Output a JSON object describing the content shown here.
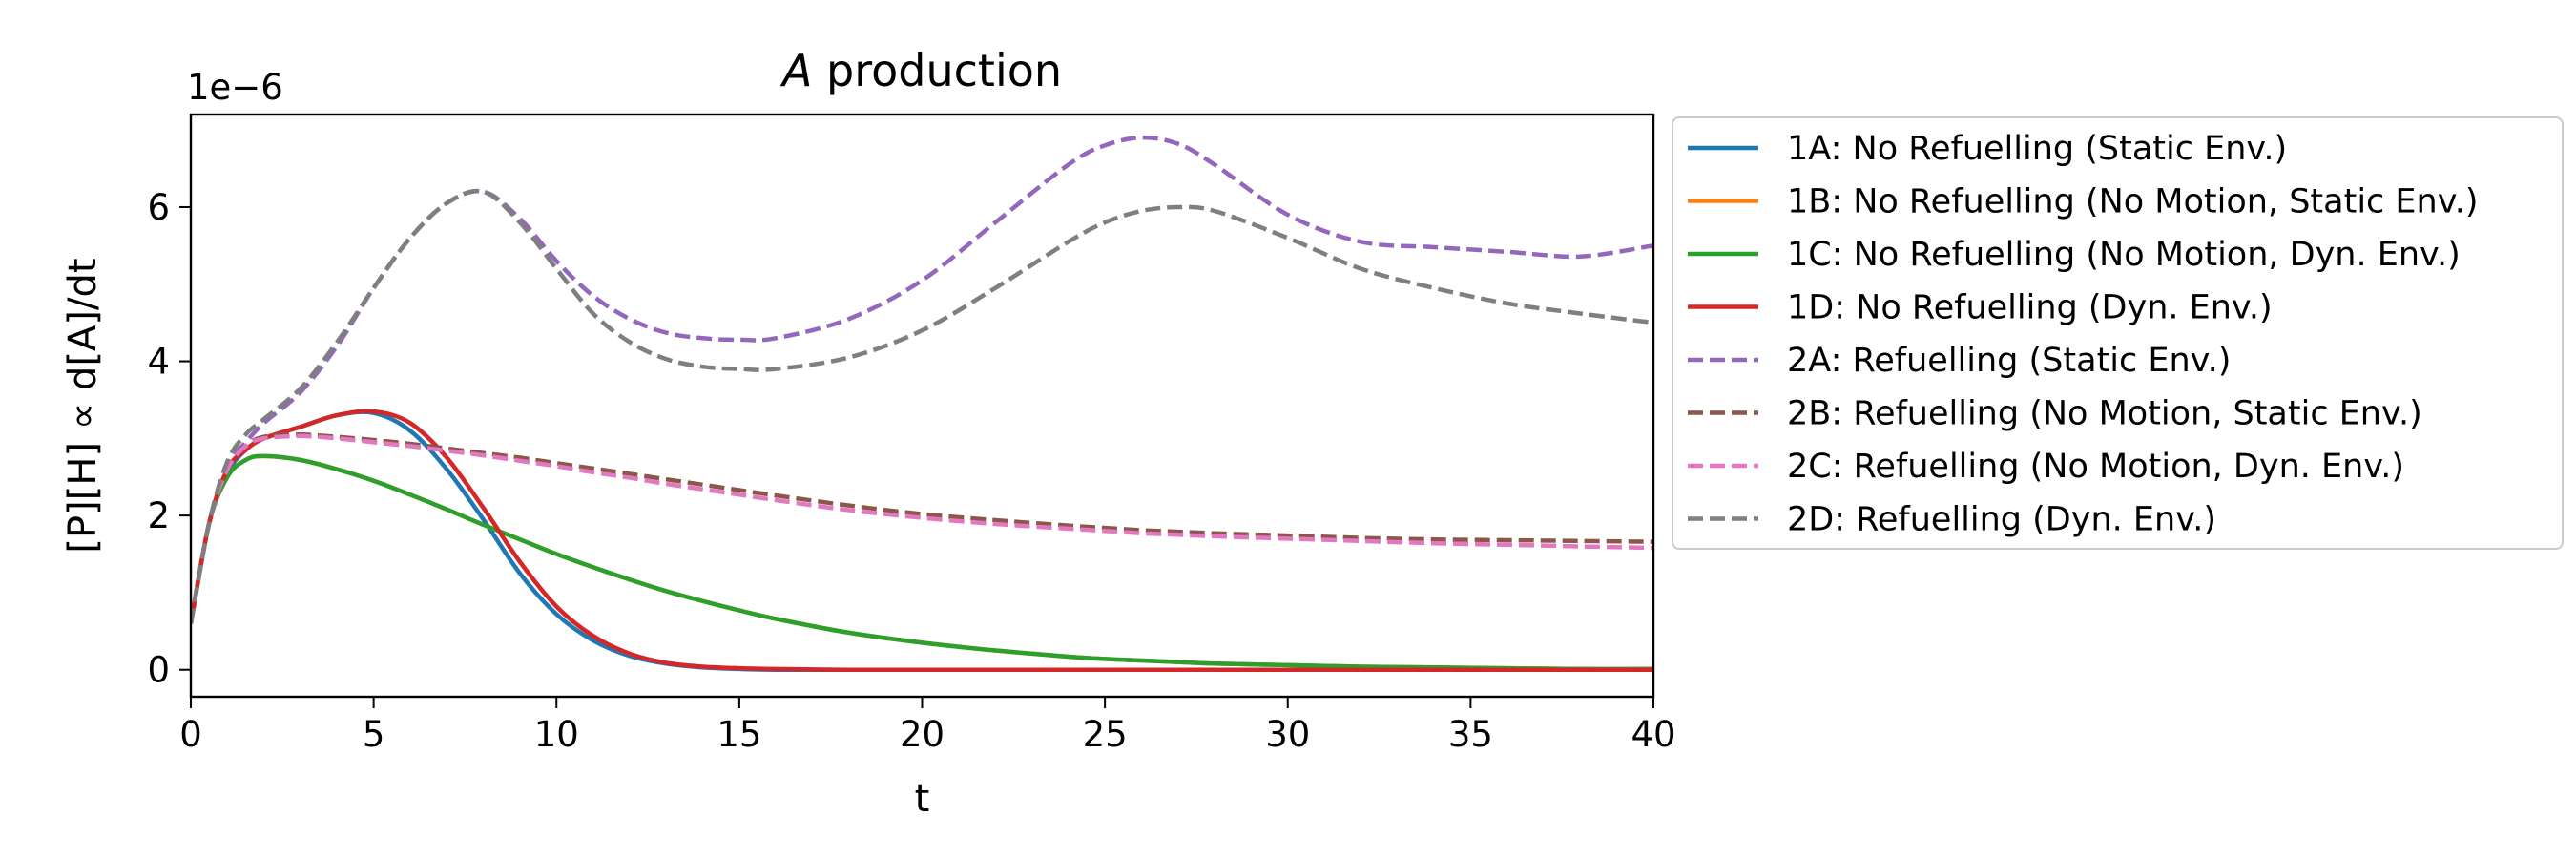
{
  "chart_data": {
    "type": "line",
    "title_italic": "A",
    "title": "production",
    "xlabel": "t",
    "ylabel": "[P][H] ∝ d[A]/dt",
    "y_offset_label": "1e−6",
    "xlim": [
      0,
      40
    ],
    "ylim": [
      -0.35,
      7.2
    ],
    "y_scale_factor": 1e-06,
    "x_ticks": [
      0,
      5,
      10,
      15,
      20,
      25,
      30,
      35,
      40
    ],
    "y_ticks": [
      0,
      2,
      4,
      6
    ],
    "grid": false,
    "legend_position": "outside-right",
    "x": [
      0,
      0.5,
      1,
      1.5,
      2,
      3,
      4,
      5,
      6,
      7,
      8,
      9,
      10,
      11,
      12,
      13,
      14,
      15,
      16,
      18,
      20,
      22,
      24,
      25,
      26,
      27,
      28,
      30,
      32,
      34,
      36,
      38,
      40
    ],
    "series": [
      {
        "name": "1A: No Refuelling (Static Env.)",
        "color": "#1f77b4",
        "dash": "solid",
        "values": [
          0.6,
          1.9,
          2.55,
          2.85,
          3.0,
          3.15,
          3.3,
          3.33,
          3.1,
          2.6,
          1.95,
          1.25,
          0.72,
          0.38,
          0.18,
          0.08,
          0.03,
          0.01,
          0.0,
          0.0,
          0.0,
          0.0,
          0.0,
          0.0,
          0.0,
          0.0,
          0.0,
          0.0,
          0.0,
          0.0,
          0.0,
          0.0,
          0.0
        ]
      },
      {
        "name": "1B: No Refuelling (No Motion, Static Env.)",
        "color": "#ff7f0e",
        "dash": "solid",
        "values": [
          0.6,
          1.9,
          2.5,
          2.72,
          2.77,
          2.72,
          2.6,
          2.45,
          2.27,
          2.08,
          1.88,
          1.69,
          1.5,
          1.33,
          1.17,
          1.02,
          0.89,
          0.77,
          0.66,
          0.48,
          0.35,
          0.25,
          0.17,
          0.14,
          0.12,
          0.1,
          0.08,
          0.06,
          0.04,
          0.03,
          0.02,
          0.01,
          0.01
        ]
      },
      {
        "name": "1C: No Refuelling (No Motion, Dyn. Env.)",
        "color": "#2ca02c",
        "dash": "solid",
        "values": [
          0.6,
          1.9,
          2.5,
          2.72,
          2.77,
          2.72,
          2.6,
          2.45,
          2.27,
          2.08,
          1.88,
          1.69,
          1.5,
          1.33,
          1.17,
          1.02,
          0.89,
          0.77,
          0.66,
          0.48,
          0.35,
          0.25,
          0.17,
          0.14,
          0.12,
          0.1,
          0.08,
          0.06,
          0.04,
          0.03,
          0.02,
          0.01,
          0.01
        ]
      },
      {
        "name": "1D: No Refuelling (Dyn. Env.)",
        "color": "#d62728",
        "dash": "solid",
        "values": [
          0.6,
          1.9,
          2.6,
          2.85,
          3.0,
          3.15,
          3.3,
          3.35,
          3.2,
          2.75,
          2.1,
          1.4,
          0.82,
          0.44,
          0.21,
          0.09,
          0.04,
          0.02,
          0.01,
          0.0,
          0.0,
          0.0,
          0.0,
          0.0,
          0.0,
          0.0,
          0.0,
          0.0,
          0.0,
          0.0,
          0.0,
          0.0,
          0.0
        ]
      },
      {
        "name": "2A: Refuelling (Static Env.)",
        "color": "#9467bd",
        "dash": "dashed",
        "values": [
          0.6,
          1.9,
          2.65,
          2.95,
          3.2,
          3.6,
          4.2,
          4.95,
          5.6,
          6.05,
          6.2,
          5.85,
          5.3,
          4.85,
          4.55,
          4.37,
          4.3,
          4.28,
          4.3,
          4.55,
          5.05,
          5.8,
          6.55,
          6.8,
          6.9,
          6.82,
          6.55,
          5.9,
          5.55,
          5.48,
          5.42,
          5.36,
          5.5
        ]
      },
      {
        "name": "2B: Refuelling (No Motion, Static Env.)",
        "color": "#8c564b",
        "dash": "dashed",
        "values": [
          0.6,
          1.9,
          2.6,
          2.9,
          3.02,
          3.05,
          3.02,
          2.98,
          2.93,
          2.87,
          2.81,
          2.75,
          2.68,
          2.61,
          2.54,
          2.47,
          2.4,
          2.33,
          2.26,
          2.13,
          2.02,
          1.94,
          1.87,
          1.84,
          1.81,
          1.79,
          1.77,
          1.74,
          1.71,
          1.69,
          1.68,
          1.67,
          1.66
        ]
      },
      {
        "name": "2C: Refuelling (No Motion, Dyn. Env.)",
        "color": "#e377c2",
        "dash": "dashed",
        "values": [
          0.6,
          1.9,
          2.6,
          2.9,
          3.0,
          3.03,
          3.0,
          2.95,
          2.9,
          2.84,
          2.78,
          2.71,
          2.64,
          2.56,
          2.49,
          2.41,
          2.34,
          2.27,
          2.2,
          2.07,
          1.97,
          1.89,
          1.83,
          1.8,
          1.77,
          1.75,
          1.73,
          1.7,
          1.67,
          1.64,
          1.62,
          1.6,
          1.58
        ]
      },
      {
        "name": "2D: Refuelling (Dyn. Env.)",
        "color": "#7f7f7f",
        "dash": "dashed",
        "values": [
          0.6,
          1.9,
          2.7,
          3.05,
          3.25,
          3.65,
          4.25,
          4.95,
          5.6,
          6.05,
          6.2,
          5.8,
          5.2,
          4.62,
          4.25,
          4.03,
          3.93,
          3.9,
          3.9,
          4.05,
          4.4,
          4.95,
          5.55,
          5.8,
          5.95,
          6.0,
          5.95,
          5.6,
          5.2,
          4.95,
          4.75,
          4.62,
          4.5
        ]
      }
    ]
  }
}
